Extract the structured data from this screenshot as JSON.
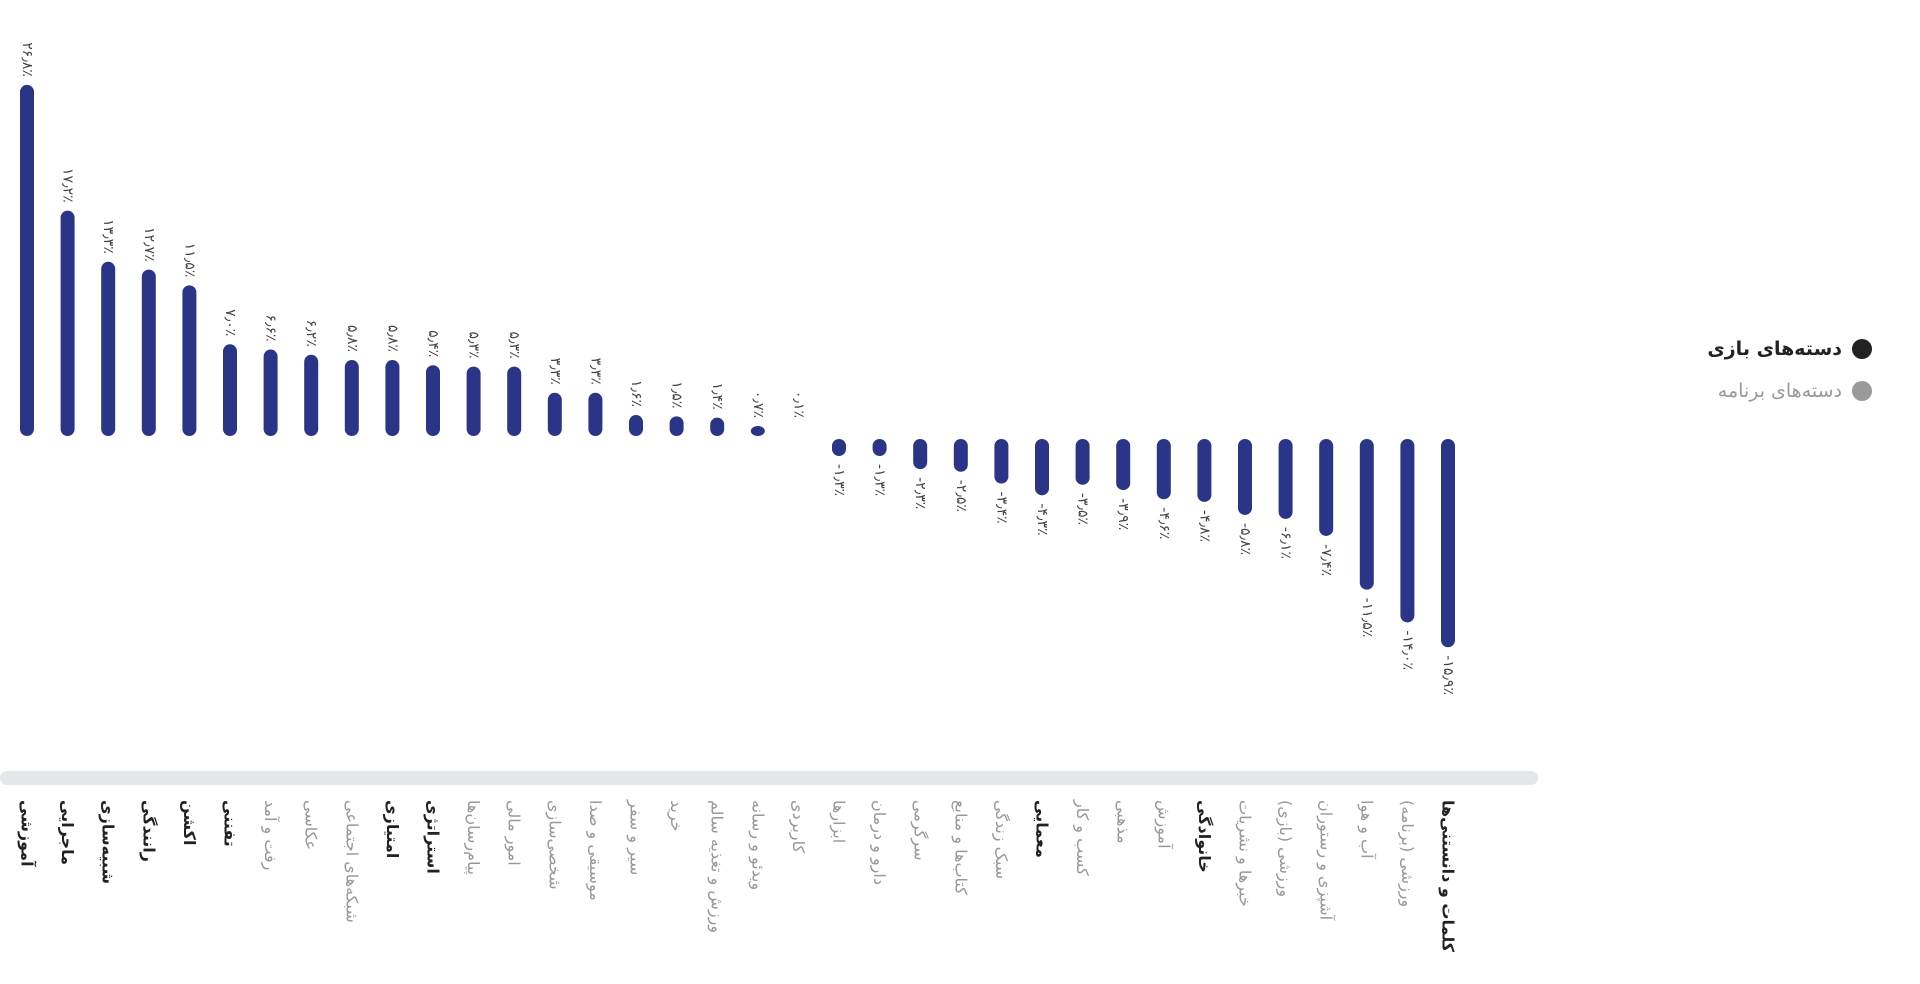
{
  "chart_data": {
    "type": "bar",
    "title": "",
    "xlabel": "",
    "ylabel": "",
    "ylim": [
      -16,
      27
    ],
    "grid": false,
    "legend_position": "right",
    "legend": [
      {
        "label": "دسته‌های بازی",
        "color": "#222222",
        "group": "game"
      },
      {
        "label": "دسته‌های برنامه",
        "color": "#9a9a9a",
        "group": "app"
      }
    ],
    "bar_color": "#2b3587",
    "categories": [
      "آموزشی",
      "ماجرایی",
      "شبیه‌سازی",
      "رانندگی",
      "اکشن",
      "تفننی",
      "رفت و آمد",
      "عکاسی",
      "شبکه‌های اجتماعی",
      "امتیازی",
      "استراتژی",
      "پیام‌رسان‌ها",
      "امور مالی",
      "شخصی‌سازی",
      "موسیقی و صدا",
      "سیر و سفر",
      "خرید",
      "ورزش و تغذیه سالم",
      "ویدئو و رسانه",
      "کاربردی",
      "ابزارها",
      "دارو و درمان",
      "سرگرمی",
      "کتاب‌ها و منابع",
      "سبک زندگی",
      "معمایی",
      "کسب و کار",
      "مذهبی",
      "آموزش",
      "خانوادگی",
      "خبرها و نشریات",
      "ورزشی (بازی)",
      "آشپزی و رستوران",
      "آب و هوا",
      "ورزشی (برنامه)",
      "کلمات و دانستنی‌ها"
    ],
    "groups": [
      "game",
      "game",
      "game",
      "game",
      "game",
      "game",
      "app",
      "app",
      "app",
      "game",
      "game",
      "app",
      "app",
      "app",
      "app",
      "app",
      "app",
      "app",
      "app",
      "app",
      "app",
      "app",
      "app",
      "app",
      "app",
      "game",
      "app",
      "app",
      "app",
      "game",
      "app",
      "app",
      "app",
      "app",
      "app",
      "game"
    ],
    "values": [
      26.8,
      17.2,
      13.3,
      12.7,
      11.5,
      7.0,
      6.6,
      6.2,
      5.8,
      5.8,
      5.4,
      5.3,
      5.3,
      3.3,
      3.3,
      1.6,
      1.5,
      1.4,
      0.7,
      0.1,
      -1.3,
      -1.3,
      -2.3,
      -2.5,
      -3.4,
      -4.3,
      -3.5,
      -3.9,
      -4.6,
      -4.8,
      -5.8,
      -6.1,
      -7.4,
      -11.5,
      -14.0,
      -15.9
    ],
    "value_labels": [
      "۲۶٫۸٪",
      "۱۷٫۲٪",
      "۱۳٫۳٪",
      "۱۲٫۷٪",
      "۱۱٫۵٪",
      "۷٫۰٪",
      "۶٫۶٪",
      "۶٫۲٪",
      "۵٫۸٪",
      "۵٫۸٪",
      "۵٫۴٪",
      "۵٫۳٪",
      "۵٫۳٪",
      "۳٫۳٪",
      "۳٫۳٪",
      "۱٫۶٪",
      "۱٫۵٪",
      "۱٫۴٪",
      "۰٫۷٪",
      "۰٫۱٪",
      "-۱٫۳٪",
      "-۱٫۳٪",
      "-۲٫۳٪",
      "-۲٫۵٪",
      "-۳٫۴٪",
      "-۴٫۳٪",
      "-۳٫۵٪",
      "-۳٫۹٪",
      "-۴٫۶٪",
      "-۴٫۸٪",
      "-۵٫۸٪",
      "-۶٫۱٪",
      "-۷٫۴٪",
      "-۱۱٫۵٪",
      "-۱۴٫۰٪",
      "-۱۵٫۹٪"
    ]
  }
}
